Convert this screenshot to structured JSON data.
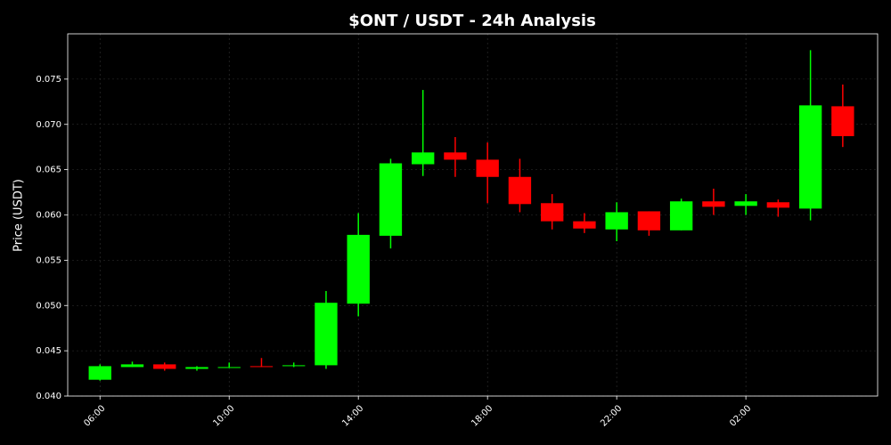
{
  "chart_data": {
    "type": "candlestick",
    "title": "$ONT / USDT - 24h Analysis",
    "y_label": "Price (USDT)",
    "categories": [
      "06:00",
      null,
      null,
      null,
      "10:00",
      null,
      null,
      null,
      "14:00",
      null,
      null,
      null,
      "18:00",
      null,
      null,
      null,
      "22:00",
      null,
      null,
      null,
      "02:00",
      null,
      null,
      null
    ],
    "open": [
      0.0418,
      0.0432,
      0.0435,
      0.043,
      0.0431,
      0.0433,
      0.0433,
      0.0434,
      0.0502,
      0.0577,
      0.0656,
      0.0669,
      0.0661,
      0.0642,
      0.0613,
      0.0593,
      0.0584,
      0.0604,
      0.0583,
      0.0615,
      0.061,
      0.0614,
      0.0607,
      0.072
    ],
    "high": [
      0.0435,
      0.0438,
      0.0437,
      0.0433,
      0.0437,
      0.0442,
      0.0437,
      0.0516,
      0.0602,
      0.0662,
      0.0738,
      0.0686,
      0.068,
      0.0662,
      0.0623,
      0.0602,
      0.0614,
      0.0604,
      0.0618,
      0.0629,
      0.0623,
      0.0617,
      0.0782,
      0.0744
    ],
    "low": [
      0.0417,
      0.0432,
      0.0428,
      0.0428,
      0.0431,
      0.0432,
      0.0432,
      0.043,
      0.0488,
      0.0563,
      0.0643,
      0.0642,
      0.0613,
      0.0603,
      0.0584,
      0.058,
      0.0571,
      0.0577,
      0.0583,
      0.06,
      0.06,
      0.0598,
      0.0594,
      0.0675
    ],
    "close": [
      0.0433,
      0.0435,
      0.043,
      0.0432,
      0.0432,
      0.0432,
      0.0434,
      0.0503,
      0.0578,
      0.0657,
      0.0669,
      0.0661,
      0.0642,
      0.0612,
      0.0593,
      0.0585,
      0.0603,
      0.0583,
      0.0615,
      0.0609,
      0.0615,
      0.0608,
      0.0721,
      0.0687
    ],
    "up_color": "#00ff00",
    "down_color": "#ff0000",
    "ylim": [
      0.04,
      0.08
    ],
    "yticks": [
      {
        "value": 0.04,
        "label": "0.040"
      },
      {
        "value": 0.045,
        "label": "0.045"
      },
      {
        "value": 0.05,
        "label": "0.050"
      },
      {
        "value": 0.055,
        "label": "0.055"
      },
      {
        "value": 0.06,
        "label": "0.060"
      },
      {
        "value": 0.065,
        "label": "0.065"
      },
      {
        "value": 0.07,
        "label": "0.070"
      },
      {
        "value": 0.075,
        "label": "0.075"
      }
    ],
    "grid": true
  }
}
